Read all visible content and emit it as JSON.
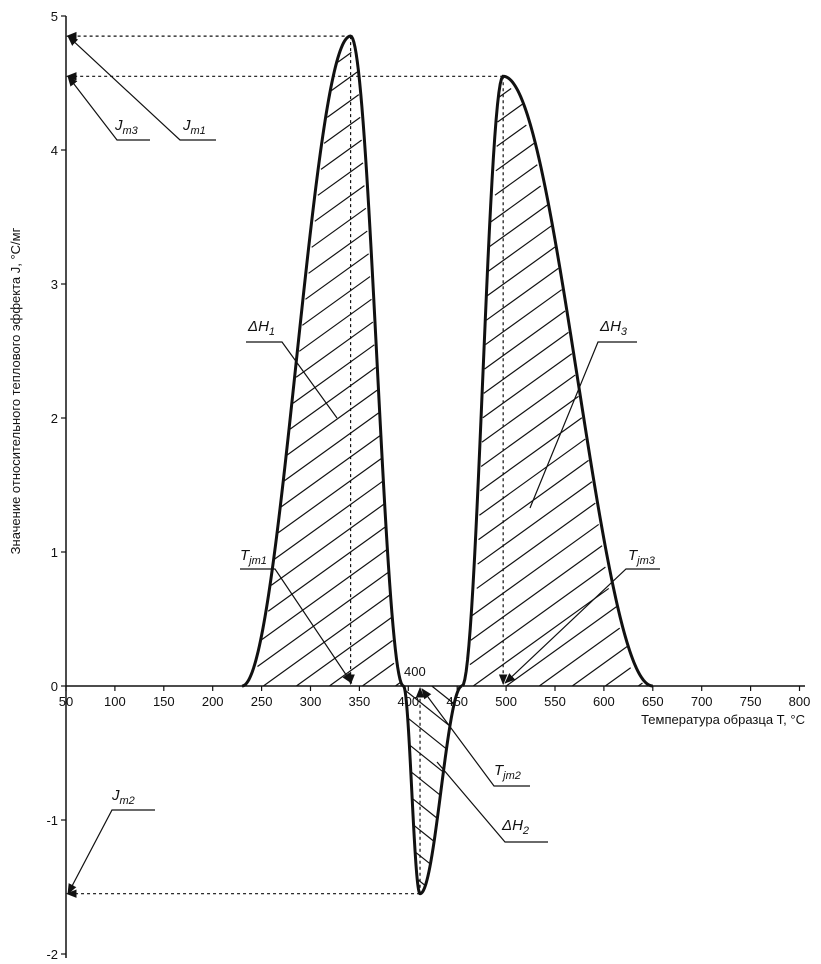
{
  "chart_data": {
    "type": "line",
    "xlabel": "Температура образца T, °C",
    "ylabel": "Значение относительного теплового эффекта J, °C/мг",
    "xlim": [
      50,
      800
    ],
    "ylim": [
      -2,
      5
    ],
    "x_ticks": [
      50,
      100,
      150,
      200,
      250,
      300,
      350,
      400,
      450,
      500,
      550,
      600,
      650,
      700,
      750,
      800
    ],
    "y_ticks": [
      -2,
      -1,
      0,
      1,
      2,
      3,
      4,
      5
    ],
    "grid": false,
    "series": [
      {
        "peaks": [
          {
            "label": "ΔH",
            "sub": "1",
            "T_start": 230,
            "T_peak": 341,
            "T_end": 395,
            "J_peak": 4.85
          },
          {
            "label": "ΔH",
            "sub": "2",
            "T_start": 395,
            "T_peak": 412,
            "T_end": 455,
            "J_peak": -1.55
          },
          {
            "label": "ΔH",
            "sub": "3",
            "T_start": 455,
            "T_peak": 497,
            "T_end": 650,
            "J_peak": 4.55
          }
        ]
      }
    ],
    "annotations": {
      "Jm1": {
        "main": "J",
        "sub": "m1"
      },
      "Jm2": {
        "main": "J",
        "sub": "m2"
      },
      "Jm3": {
        "main": "J",
        "sub": "m3"
      },
      "Tjm1": {
        "main": "T",
        "sub": "jm1"
      },
      "Tjm2": {
        "main": "T",
        "sub": "jm2"
      },
      "Tjm3": {
        "main": "T",
        "sub": "jm3"
      },
      "tick400": "400"
    }
  }
}
